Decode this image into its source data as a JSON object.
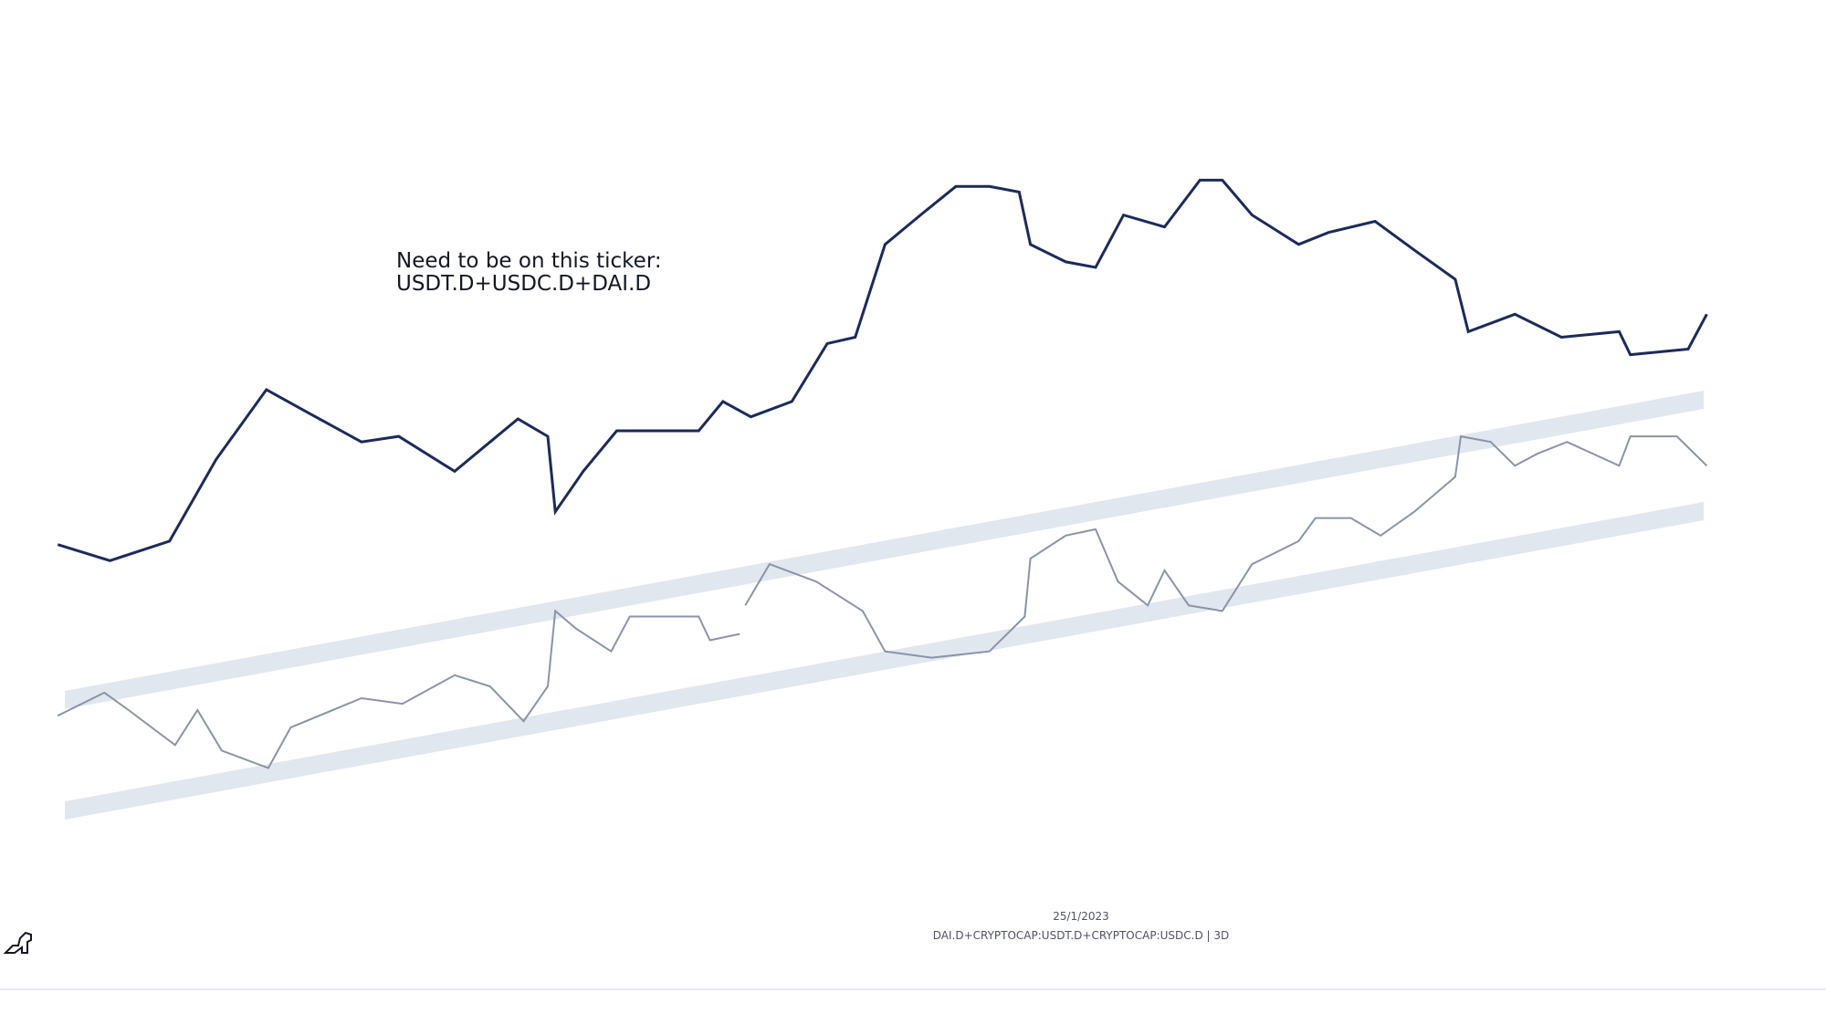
{
  "chart_data": {
    "type": "line",
    "annotation": [
      "Need to be on this ticker:",
      "USDT.D+USDC.D+DAI.D"
    ],
    "date": "25/1/2023",
    "symbol": "DAI.D+CRYPTOCAP:USDT.D+CRYPTOCAP:USDC.D | 3D",
    "xlim": [
      0,
      98
    ],
    "ylim": [
      0,
      100
    ],
    "series": [
      {
        "color": "#1c2a5a",
        "x": [
          3.1,
          5.9,
          9.1,
          11.6,
          14.3,
          16.6,
          19.4,
          21.4,
          24.4,
          27.8,
          29.4,
          29.8,
          31.3,
          33.1,
          37.5,
          38.8,
          40.3,
          42.5,
          44.4,
          45.9,
          47.5,
          49.4,
          51.3,
          53.1,
          54.7,
          55.3,
          57.2,
          58.8,
          60.3,
          62.5,
          64.4,
          65.6,
          67.2,
          69.7,
          71.3,
          73.8,
          75.9,
          78.1,
          78.8,
          81.3,
          83.8,
          86.9,
          87.5,
          90.6,
          91.6
        ],
        "values": [
          42,
          39.7,
          42.5,
          54.2,
          64.2,
          60.8,
          56.7,
          57.5,
          52.5,
          60,
          57.5,
          46.7,
          52.5,
          58.3,
          58.3,
          62.5,
          60.3,
          62.5,
          70.8,
          71.7,
          85,
          89.2,
          93.3,
          93.3,
          92.5,
          85,
          82.5,
          81.7,
          89.2,
          87.5,
          94.2,
          94.2,
          89.2,
          85,
          86.7,
          88.3,
          84.2,
          80,
          72.5,
          75,
          71.7,
          72.5,
          69.2,
          70,
          75
        ]
      },
      {
        "color": "#8a93a8",
        "x": [
          3.1,
          5.6,
          6.9,
          9.4,
          10.6,
          11.9,
          14.4,
          15.6,
          19.4,
          21.6,
          24.4,
          26.3,
          28.1,
          29.4,
          29.8,
          30.9,
          32.8,
          33.8,
          37.5,
          38.1,
          39.7,
          null,
          40,
          41.3,
          43.8,
          46.3,
          47.5,
          50,
          53.1,
          55,
          55.3,
          57.2,
          58.8,
          60,
          61.6,
          62.5,
          63.8,
          65.6,
          67.2,
          69.7,
          70.6,
          72.5,
          74.1,
          75.9,
          78.1,
          78.4,
          80,
          81.3,
          82.5,
          84.1,
          86.9,
          87.5,
          90,
          91.6
        ],
        "values": [
          17.5,
          20.8,
          18.3,
          13.3,
          18.3,
          12.5,
          10,
          15.8,
          20,
          19.2,
          23.3,
          21.7,
          16.7,
          21.7,
          32.5,
          30,
          26.7,
          31.7,
          31.7,
          28.3,
          29.2,
          null,
          33.3,
          39.2,
          36.7,
          32.5,
          26.7,
          25.8,
          26.7,
          31.7,
          40,
          43.3,
          44.2,
          36.7,
          33.3,
          38.3,
          33.3,
          32.5,
          39.2,
          42.5,
          45.8,
          45.8,
          43.3,
          46.7,
          51.7,
          57.5,
          56.7,
          53.3,
          55,
          56.7,
          53.3,
          57.5,
          57.5,
          53.3
        ]
      }
    ]
  }
}
